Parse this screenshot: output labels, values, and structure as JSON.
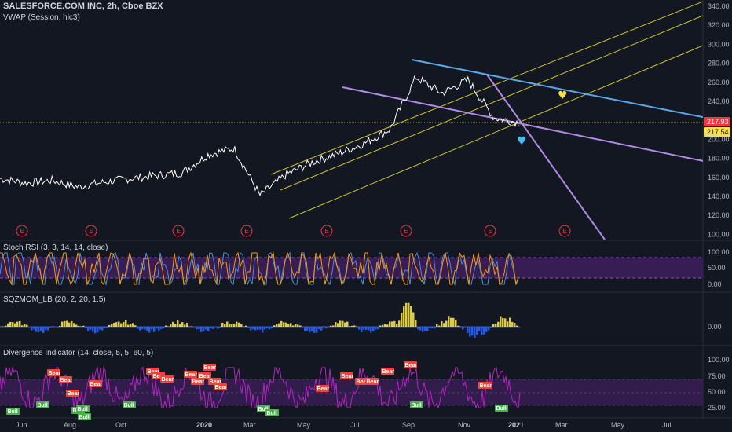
{
  "header": {
    "symbol_title": "SALESFORCE.COM INC, 2h, Cboe BZX",
    "indicator": "VWAP (Session, hlc3)"
  },
  "panes": {
    "stoch_title": "Stoch RSI (3, 3, 14, 14, close)",
    "sqz_title": "SQZMOM_LB (20, 2, 20, 1.5)",
    "div_title": "Divergence Indicator (14, close, 5, 5, 60, 5)"
  },
  "price_axis": [
    "340.00",
    "320.00",
    "300.00",
    "280.00",
    "260.00",
    "240.00",
    "220.00",
    "200.00",
    "180.00",
    "160.00",
    "140.00",
    "120.00",
    "100.00"
  ],
  "price_tags": {
    "last": "217.93",
    "vwap": "217.54"
  },
  "stoch_axis": [
    "100.00",
    "50.00",
    "0.00"
  ],
  "sqz_axis": [
    "0.00"
  ],
  "div_axis": [
    "100.00",
    "75.00",
    "50.00",
    "25.00"
  ],
  "time_axis": [
    "Jun",
    "Aug",
    "Oct",
    "2020",
    "Mar",
    "May",
    "Jul",
    "Sep",
    "Nov",
    "2021",
    "Mar",
    "May",
    "Jul"
  ],
  "earnings_marker": "E",
  "bear_label": "Bear",
  "bull_label": "Bull",
  "colors": {
    "background": "#131722",
    "price_line": "#ffffff",
    "vwap": "#e91e63",
    "channel": "#c9c431",
    "blue_trend": "#5ba8e6",
    "purple_trend": "#b18ce6",
    "stoch_k": "#4a90d9",
    "stoch_d": "#ff9800",
    "band_fill": "#3e1f5c",
    "sqz_pos": "#f5e04b",
    "sqz_neg": "#2962ff",
    "rsi_line": "#b325c0",
    "bear": "#f44336",
    "bull": "#4caf50",
    "last_tag": "#f23645",
    "vwap_tag": "#f5e04b",
    "heart_yellow": "#f5e04b",
    "heart_blue": "#4ab7f5"
  },
  "icons": [
    "heart-yellow-icon",
    "heart-blue-icon",
    "earnings-icon"
  ],
  "chart_data": {
    "type": "line",
    "title": "SALESFORCE.COM INC, 2h, Cboe BZX",
    "ylim": [
      100,
      345
    ],
    "x": [
      "2019-05",
      "2019-06",
      "2019-07",
      "2019-08",
      "2019-09",
      "2019-10",
      "2019-11",
      "2019-12",
      "2020-01",
      "2020-02",
      "2020-03",
      "2020-04",
      "2020-05",
      "2020-06",
      "2020-07",
      "2020-08",
      "2020-09",
      "2020-10",
      "2020-11",
      "2020-12",
      "2021-01"
    ],
    "series": [
      {
        "values": [
          158,
          153,
          156,
          149,
          154,
          158,
          161,
          164,
          183,
          190,
          140,
          162,
          175,
          184,
          195,
          210,
          265,
          248,
          262,
          222,
          217
        ]
      }
    ]
  }
}
